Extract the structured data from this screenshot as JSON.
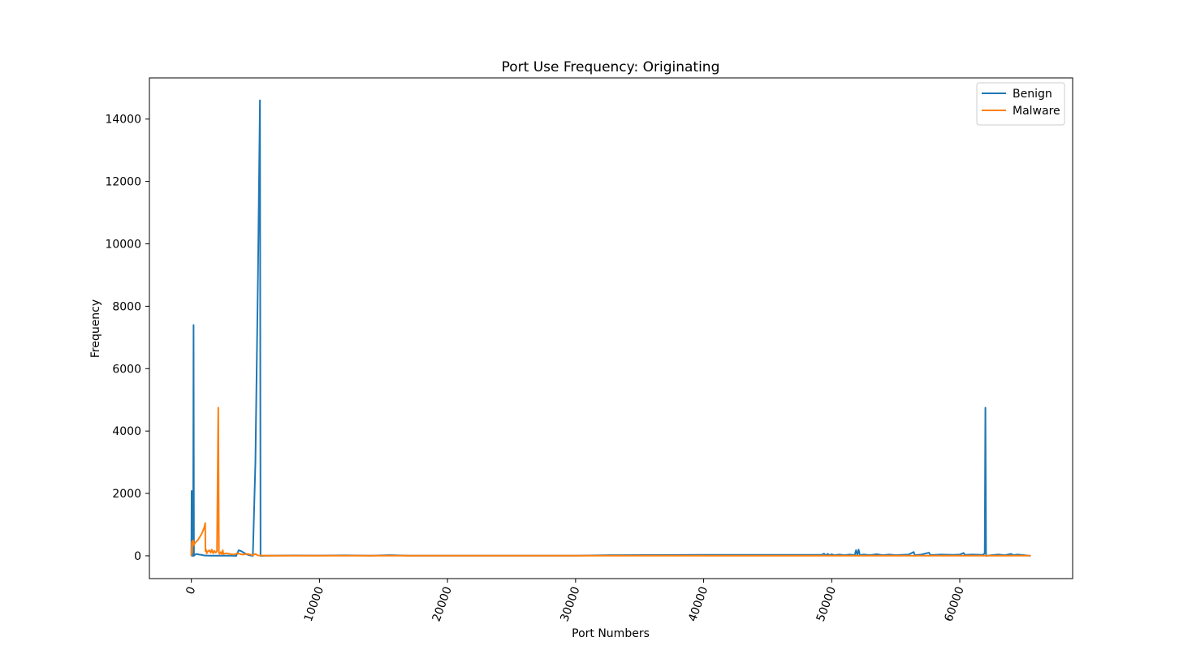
{
  "chart_data": {
    "type": "line",
    "title": "Port Use Frequency: Originating",
    "xlabel": "Port Numbers",
    "ylabel": "Frequency",
    "xlim": [
      -3277,
      68812
    ],
    "ylim": [
      -730,
      15320
    ],
    "xticks": [
      0,
      10000,
      20000,
      30000,
      40000,
      50000,
      60000
    ],
    "yticks": [
      0,
      2000,
      4000,
      6000,
      8000,
      10000,
      12000,
      14000
    ],
    "xtick_rotation": -70,
    "grid": false,
    "legend_position": "top-right",
    "series": [
      {
        "name": "Benign",
        "color": "#1f77b4",
        "points": [
          [
            0,
            0
          ],
          [
            20,
            2080
          ],
          [
            40,
            0
          ],
          [
            60,
            300
          ],
          [
            80,
            2050
          ],
          [
            100,
            0
          ],
          [
            140,
            500
          ],
          [
            170,
            7400
          ],
          [
            200,
            0
          ],
          [
            300,
            40
          ],
          [
            400,
            60
          ],
          [
            600,
            40
          ],
          [
            800,
            30
          ],
          [
            1000,
            10
          ],
          [
            1500,
            5
          ],
          [
            2000,
            5
          ],
          [
            3000,
            5
          ],
          [
            3500,
            0
          ],
          [
            3700,
            180
          ],
          [
            3900,
            150
          ],
          [
            4100,
            100
          ],
          [
            4300,
            50
          ],
          [
            4600,
            10
          ],
          [
            4800,
            0
          ],
          [
            5000,
            3000
          ],
          [
            5200,
            9000
          ],
          [
            5356,
            14600
          ],
          [
            5400,
            0
          ],
          [
            6000,
            5
          ],
          [
            8000,
            10
          ],
          [
            10000,
            8
          ],
          [
            12000,
            15
          ],
          [
            14000,
            5
          ],
          [
            15500,
            20
          ],
          [
            17000,
            5
          ],
          [
            20000,
            5
          ],
          [
            25000,
            5
          ],
          [
            30000,
            5
          ],
          [
            32768,
            20
          ],
          [
            40000,
            30
          ],
          [
            45000,
            30
          ],
          [
            49200,
            30
          ],
          [
            49400,
            70
          ],
          [
            49500,
            20
          ],
          [
            49700,
            60
          ],
          [
            49800,
            20
          ],
          [
            50000,
            50
          ],
          [
            50200,
            20
          ],
          [
            50600,
            40
          ],
          [
            51000,
            20
          ],
          [
            51400,
            40
          ],
          [
            51800,
            20
          ],
          [
            51900,
            180
          ],
          [
            52000,
            20
          ],
          [
            52100,
            200
          ],
          [
            52200,
            20
          ],
          [
            52500,
            40
          ],
          [
            53000,
            20
          ],
          [
            53500,
            50
          ],
          [
            54000,
            20
          ],
          [
            54500,
            40
          ],
          [
            55000,
            20
          ],
          [
            56000,
            40
          ],
          [
            56400,
            120
          ],
          [
            56500,
            20
          ],
          [
            57000,
            40
          ],
          [
            57600,
            100
          ],
          [
            57700,
            20
          ],
          [
            58500,
            40
          ],
          [
            59500,
            30
          ],
          [
            60000,
            40
          ],
          [
            60300,
            90
          ],
          [
            60400,
            30
          ],
          [
            61000,
            40
          ],
          [
            61800,
            30
          ],
          [
            61950,
            80
          ],
          [
            62000,
            4750
          ],
          [
            62050,
            0
          ],
          [
            62500,
            20
          ],
          [
            63000,
            40
          ],
          [
            63500,
            20
          ],
          [
            64000,
            60
          ],
          [
            64200,
            20
          ],
          [
            64500,
            40
          ],
          [
            65000,
            20
          ],
          [
            65535,
            0
          ]
        ]
      },
      {
        "name": "Malware",
        "color": "#ff7f0e",
        "points": [
          [
            0,
            0
          ],
          [
            20,
            200
          ],
          [
            40,
            450
          ],
          [
            60,
            100
          ],
          [
            80,
            470
          ],
          [
            100,
            300
          ],
          [
            140,
            490
          ],
          [
            200,
            350
          ],
          [
            300,
            420
          ],
          [
            500,
            500
          ],
          [
            800,
            700
          ],
          [
            1000,
            900
          ],
          [
            1080,
            1050
          ],
          [
            1100,
            150
          ],
          [
            1150,
            200
          ],
          [
            1200,
            80
          ],
          [
            1300,
            150
          ],
          [
            1400,
            180
          ],
          [
            1500,
            100
          ],
          [
            1600,
            200
          ],
          [
            1700,
            80
          ],
          [
            1800,
            160
          ],
          [
            1900,
            100
          ],
          [
            2000,
            150
          ],
          [
            2100,
            4750
          ],
          [
            2150,
            100
          ],
          [
            2200,
            60
          ],
          [
            2300,
            120
          ],
          [
            2400,
            50
          ],
          [
            2450,
            180
          ],
          [
            2500,
            60
          ],
          [
            2700,
            80
          ],
          [
            3000,
            60
          ],
          [
            3300,
            40
          ],
          [
            3600,
            80
          ],
          [
            4000,
            40
          ],
          [
            4400,
            60
          ],
          [
            4800,
            20
          ],
          [
            5000,
            60
          ],
          [
            5200,
            10
          ],
          [
            6000,
            5
          ],
          [
            10000,
            5
          ],
          [
            20000,
            5
          ],
          [
            30000,
            5
          ],
          [
            40000,
            5
          ],
          [
            50000,
            5
          ],
          [
            60000,
            5
          ],
          [
            65535,
            5
          ]
        ]
      }
    ]
  }
}
